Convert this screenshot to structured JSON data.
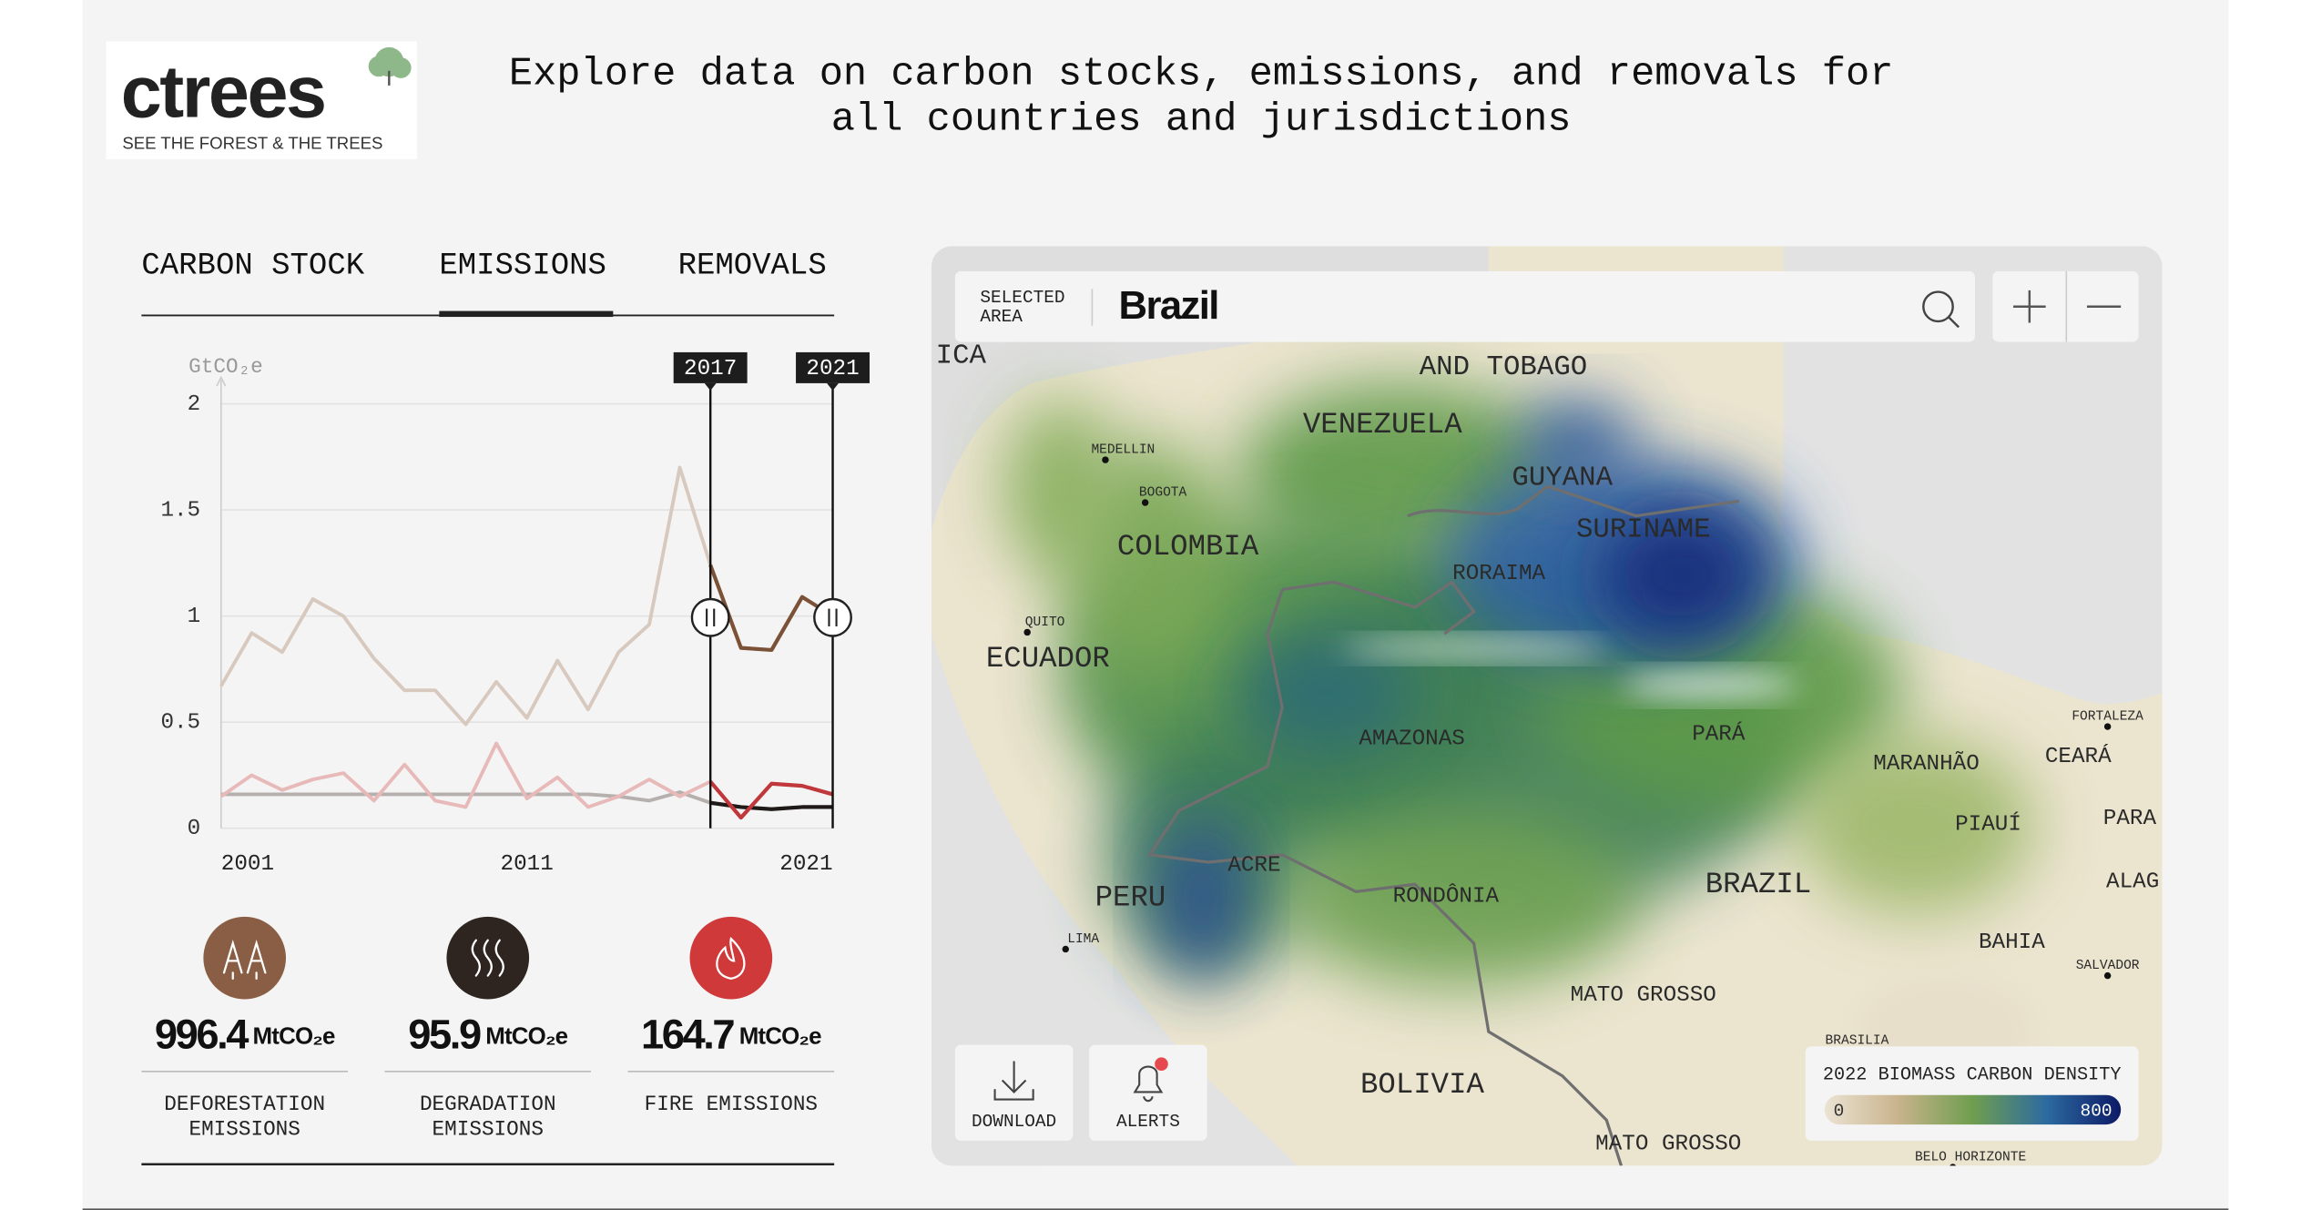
{
  "header": {
    "logo": "ctrees",
    "tagline": "SEE THE FOREST & THE TREES",
    "headline": [
      "Explore data on carbon stocks, emissions, and removals for",
      "all countries and jurisdictions"
    ]
  },
  "tabs": {
    "items": [
      "CARBON STOCK",
      "EMISSIONS",
      "REMOVALS"
    ],
    "active": 1
  },
  "chart_data": {
    "type": "line",
    "y_label": "GtCO₂e",
    "x": [
      2001,
      2002,
      2003,
      2004,
      2005,
      2006,
      2007,
      2008,
      2009,
      2010,
      2011,
      2012,
      2013,
      2014,
      2015,
      2016,
      2017,
      2018,
      2019,
      2020,
      2021
    ],
    "xlim": [
      2001,
      2021
    ],
    "xticks": [
      2001,
      2011,
      2021
    ],
    "ylim": [
      0,
      2
    ],
    "yticks": [
      0,
      0.5,
      1,
      1.5,
      2
    ],
    "grid": true,
    "selected_range": [
      2017,
      2021
    ],
    "series": [
      {
        "name": "DEFORESTATION EMISSIONS",
        "color": "#d8c9bf",
        "highlight_color": "#7b5237",
        "icon_color": "#8a5e44",
        "total": 996.4,
        "unit": "MtCO₂e",
        "values": [
          0.67,
          0.92,
          0.83,
          1.08,
          1.0,
          0.8,
          0.65,
          0.65,
          0.49,
          0.69,
          0.52,
          0.79,
          0.56,
          0.83,
          0.96,
          1.7,
          1.24,
          0.85,
          0.84,
          1.09,
          1.0
        ]
      },
      {
        "name": "DEGRADATION EMISSIONS",
        "color": "#b5b0ad",
        "highlight_color": "#1f1a18",
        "icon_color": "#2e2420",
        "total": 95.9,
        "unit": "MtCO₂e",
        "values": [
          0.16,
          0.16,
          0.16,
          0.16,
          0.16,
          0.16,
          0.16,
          0.16,
          0.16,
          0.16,
          0.16,
          0.16,
          0.16,
          0.15,
          0.13,
          0.17,
          0.12,
          0.1,
          0.09,
          0.1,
          0.1
        ]
      },
      {
        "name": "FIRE EMISSIONS",
        "color": "#e8b9b9",
        "highlight_color": "#c0373c",
        "icon_color": "#d0393a",
        "total": 164.7,
        "unit": "MtCO₂e",
        "values": [
          0.15,
          0.25,
          0.18,
          0.23,
          0.26,
          0.13,
          0.3,
          0.13,
          0.1,
          0.4,
          0.14,
          0.24,
          0.1,
          0.15,
          0.23,
          0.15,
          0.22,
          0.05,
          0.21,
          0.2,
          0.16
        ]
      }
    ]
  },
  "map": {
    "search_label": [
      "SELECTED",
      "AREA"
    ],
    "selected": "Brazil",
    "labels": [
      "ICA",
      "AND TOBAGO",
      "VENEZUELA",
      "GUYANA",
      "SURINAME",
      "COLOMBIA",
      "ECUADOR",
      "RORAIMA",
      "AMAZONAS",
      "PARÁ",
      "MARANHÃO",
      "CEARÁ",
      "PIAUÍ",
      "PARA",
      "ACRE",
      "PERU",
      "RONDÔNIA",
      "BRAZIL",
      "ALAG",
      "BAHIA",
      "MATO GROSSO",
      "BOLIVIA",
      "MATO GROSSO",
      "MEDELLIN",
      "BOGOTA",
      "QUITO",
      "LIMA",
      "FORTALEZA",
      "SALVADOR",
      "BRASILIA",
      "BELO HORIZONTE"
    ],
    "buttons": [
      "DOWNLOAD",
      "ALERTS"
    ],
    "legend": {
      "title": "2022 BIOMASS CARBON DENSITY",
      "min": 0,
      "max": 800
    }
  }
}
